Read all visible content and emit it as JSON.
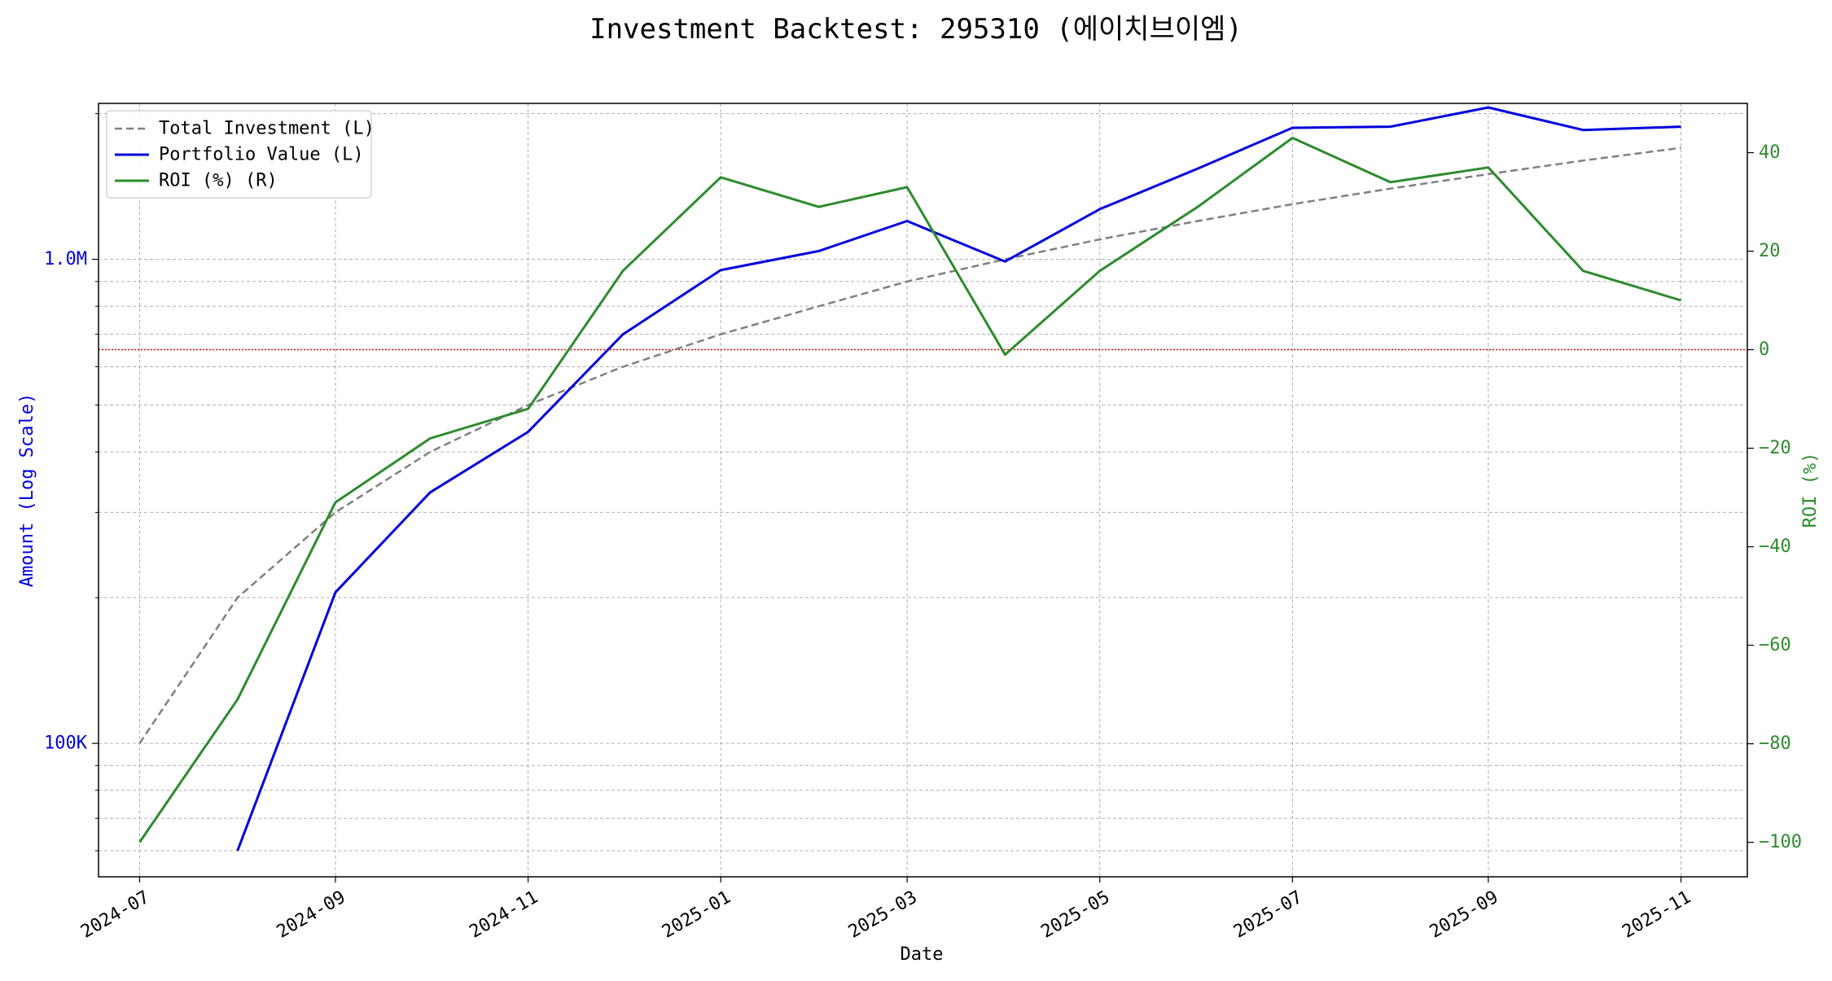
{
  "chart_data": {
    "type": "line",
    "title": "Investment Backtest: 295310 (에이치브이엠)",
    "xlabel": "Date",
    "ylabel_left": "Amount (Log Scale)",
    "ylabel_right": "ROI (%)",
    "y_left_scale": "log",
    "y_left_lim": [
      53000,
      2100000
    ],
    "y_left_ticks": [
      {
        "value": 100000,
        "label": "100K"
      },
      {
        "value": 1000000,
        "label": "1.0M"
      }
    ],
    "y_right_lim": [
      -107,
      50
    ],
    "y_right_ticks": [
      {
        "value": -100,
        "label": "−100"
      },
      {
        "value": -80,
        "label": "−80"
      },
      {
        "value": -60,
        "label": "−60"
      },
      {
        "value": -40,
        "label": "−40"
      },
      {
        "value": -20,
        "label": "−20"
      },
      {
        "value": 0,
        "label": "0"
      },
      {
        "value": 20,
        "label": "20"
      },
      {
        "value": 40,
        "label": "40"
      }
    ],
    "x_ticks": [
      "2024-07",
      "2024-09",
      "2024-11",
      "2025-01",
      "2025-03",
      "2025-05",
      "2025-07",
      "2025-09",
      "2025-11"
    ],
    "x_lim": [
      "2024-06-18",
      "2025-11-22"
    ],
    "dates": [
      "2024-07-01",
      "2024-08-01",
      "2024-09-01",
      "2024-10-01",
      "2024-11-01",
      "2024-12-01",
      "2025-01-01",
      "2025-02-01",
      "2025-03-01",
      "2025-04-01",
      "2025-05-01",
      "2025-06-01",
      "2025-07-01",
      "2025-08-01",
      "2025-09-01",
      "2025-10-01",
      "2025-11-01"
    ],
    "grid": true,
    "zero_line": {
      "value": 0,
      "axis": "right",
      "color": "#ff0000",
      "style": "dotted"
    },
    "legend_position": "top-left",
    "series": [
      {
        "name": "Total Investment (L)",
        "axis": "left",
        "color": "#808080",
        "style": "dashed",
        "values": [
          100000,
          200000,
          300000,
          400000,
          500000,
          600000,
          700000,
          800000,
          900000,
          1000000,
          1100000,
          1200000,
          1300000,
          1400000,
          1500000,
          1600000,
          1700000
        ]
      },
      {
        "name": "Portfolio Value (L)",
        "axis": "left",
        "color": "#0000dd",
        "style": "solid",
        "values": [
          null,
          60000,
          205000,
          330000,
          440000,
          700000,
          950000,
          1040000,
          1200000,
          990000,
          1270000,
          1540000,
          1870000,
          1880000,
          2060000,
          1850000,
          1880000
        ]
      },
      {
        "name": "ROI (%) (R)",
        "axis": "right",
        "color": "#2e8b2e",
        "style": "solid",
        "values": [
          -100,
          -71,
          -31,
          -18,
          -12,
          16,
          35,
          29,
          33,
          -1,
          16,
          29,
          43,
          34,
          37,
          16,
          10
        ]
      }
    ]
  }
}
